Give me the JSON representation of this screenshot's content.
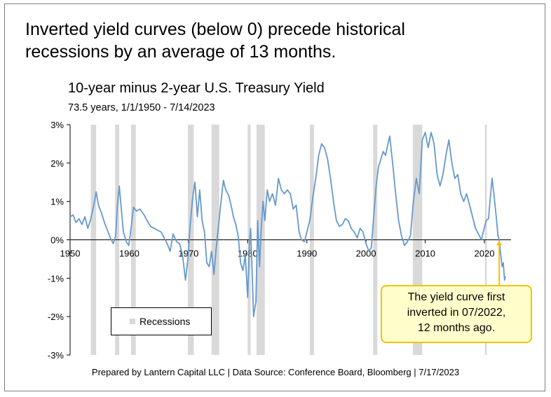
{
  "headline": {
    "line1": "Inverted yield curves (below 0) precede historical",
    "line2": "recessions by an average of 13 months."
  },
  "annotation": {
    "line1": "The yield curve first",
    "line2": "inverted in 07/2022,",
    "line3": "12 months ago."
  },
  "footer": "Prepared by Lantern Capital LLC | Data Source: Conference Board, Bloomberg | 7/17/2023",
  "colors": {
    "series": "#6699cc",
    "recession": "#d9d9d9",
    "callout_fill": "#ffffcc",
    "callout_border": "#f2c200",
    "marker": "#ffc000"
  },
  "chart_data": {
    "type": "line",
    "title": "10-year minus 2-year U.S. Treasury Yield",
    "subtitle": "73.5 years, 1/1/1950 - 7/14/2023",
    "xlabel": "",
    "ylabel": "",
    "xlim": [
      1950,
      2024.5
    ],
    "ylim": [
      -3,
      3
    ],
    "x_ticks": [
      1950,
      1960,
      1970,
      1980,
      1990,
      2000,
      2010,
      2020
    ],
    "y_ticks": [
      {
        "value": 3,
        "label": "3%"
      },
      {
        "value": 2,
        "label": "2%"
      },
      {
        "value": 1,
        "label": "1%"
      },
      {
        "value": 0,
        "label": "0%"
      },
      {
        "value": -1,
        "label": "-1%"
      },
      {
        "value": -2,
        "label": "-2%"
      },
      {
        "value": -3,
        "label": "-3%"
      }
    ],
    "grid": false,
    "legend": {
      "position": "bottom-left",
      "entries": [
        "Recessions"
      ]
    },
    "recessions": [
      [
        1953.5,
        1954.4
      ],
      [
        1957.6,
        1958.3
      ],
      [
        1960.3,
        1961.1
      ],
      [
        1969.9,
        1970.9
      ],
      [
        1973.9,
        1975.2
      ],
      [
        1980.0,
        1980.5
      ],
      [
        1981.5,
        1982.9
      ],
      [
        1990.5,
        1991.2
      ],
      [
        2001.2,
        2001.9
      ],
      [
        2007.9,
        2009.5
      ],
      [
        2020.1,
        2020.4
      ]
    ],
    "inversion_marker": {
      "x": 2022.5,
      "y": 0,
      "label": "07/2022"
    },
    "series": [
      {
        "values": [
          [
            1950.0,
            0.6
          ],
          [
            1950.5,
            0.65
          ],
          [
            1951.0,
            0.45
          ],
          [
            1951.5,
            0.55
          ],
          [
            1952.0,
            0.4
          ],
          [
            1952.5,
            0.6
          ],
          [
            1953.0,
            0.3
          ],
          [
            1953.5,
            0.55
          ],
          [
            1954.0,
            0.9
          ],
          [
            1954.4,
            1.25
          ],
          [
            1954.8,
            0.9
          ],
          [
            1955.3,
            0.7
          ],
          [
            1955.8,
            0.45
          ],
          [
            1956.3,
            0.25
          ],
          [
            1956.8,
            0.05
          ],
          [
            1957.3,
            -0.1
          ],
          [
            1957.7,
            0.1
          ],
          [
            1958.0,
            0.9
          ],
          [
            1958.3,
            1.4
          ],
          [
            1958.6,
            0.9
          ],
          [
            1959.0,
            0.2
          ],
          [
            1959.5,
            -0.05
          ],
          [
            1959.9,
            -0.15
          ],
          [
            1960.3,
            0.3
          ],
          [
            1960.7,
            0.85
          ],
          [
            1961.2,
            0.75
          ],
          [
            1961.8,
            0.8
          ],
          [
            1962.5,
            0.65
          ],
          [
            1963.0,
            0.5
          ],
          [
            1963.6,
            0.35
          ],
          [
            1964.2,
            0.3
          ],
          [
            1964.8,
            0.25
          ],
          [
            1965.4,
            0.2
          ],
          [
            1965.9,
            0.05
          ],
          [
            1966.4,
            -0.1
          ],
          [
            1966.9,
            -0.3
          ],
          [
            1967.4,
            0.15
          ],
          [
            1968.0,
            -0.05
          ],
          [
            1968.5,
            -0.1
          ],
          [
            1969.0,
            -0.4
          ],
          [
            1969.5,
            -1.05
          ],
          [
            1969.9,
            -0.5
          ],
          [
            1970.3,
            0.4
          ],
          [
            1970.7,
            1.1
          ],
          [
            1971.1,
            1.5
          ],
          [
            1971.5,
            0.6
          ],
          [
            1971.9,
            1.3
          ],
          [
            1972.3,
            0.5
          ],
          [
            1972.7,
            0.2
          ],
          [
            1973.1,
            -0.6
          ],
          [
            1973.5,
            -0.7
          ],
          [
            1973.9,
            -0.3
          ],
          [
            1974.3,
            -0.9
          ],
          [
            1974.7,
            -0.2
          ],
          [
            1975.1,
            0.4
          ],
          [
            1975.5,
            1.0
          ],
          [
            1975.9,
            1.55
          ],
          [
            1976.3,
            1.3
          ],
          [
            1976.8,
            1.15
          ],
          [
            1977.2,
            0.9
          ],
          [
            1977.6,
            0.6
          ],
          [
            1978.0,
            0.4
          ],
          [
            1978.4,
            0.1
          ],
          [
            1978.8,
            -0.6
          ],
          [
            1979.2,
            -0.8
          ],
          [
            1979.6,
            -0.4
          ],
          [
            1980.0,
            -1.5
          ],
          [
            1980.3,
            -0.1
          ],
          [
            1980.5,
            0.3
          ],
          [
            1980.8,
            -1.0
          ],
          [
            1981.0,
            -2.0
          ],
          [
            1981.4,
            -1.6
          ],
          [
            1981.7,
            0.5
          ],
          [
            1982.0,
            -0.7
          ],
          [
            1982.3,
            0.3
          ],
          [
            1982.6,
            1.0
          ],
          [
            1982.9,
            0.5
          ],
          [
            1983.3,
            1.3
          ],
          [
            1983.7,
            1.0
          ],
          [
            1984.2,
            1.2
          ],
          [
            1984.7,
            0.9
          ],
          [
            1985.2,
            1.6
          ],
          [
            1985.7,
            1.3
          ],
          [
            1986.2,
            1.2
          ],
          [
            1986.7,
            1.3
          ],
          [
            1987.2,
            1.2
          ],
          [
            1987.7,
            0.8
          ],
          [
            1988.2,
            0.9
          ],
          [
            1988.7,
            0.2
          ],
          [
            1989.1,
            0.0
          ],
          [
            1989.6,
            -0.05
          ],
          [
            1990.0,
            0.2
          ],
          [
            1990.5,
            0.5
          ],
          [
            1991.0,
            1.1
          ],
          [
            1991.5,
            1.6
          ],
          [
            1992.0,
            2.2
          ],
          [
            1992.5,
            2.5
          ],
          [
            1993.0,
            2.4
          ],
          [
            1993.5,
            2.1
          ],
          [
            1994.0,
            1.6
          ],
          [
            1994.5,
            1.0
          ],
          [
            1995.0,
            0.5
          ],
          [
            1995.5,
            0.35
          ],
          [
            1996.0,
            0.4
          ],
          [
            1996.5,
            0.55
          ],
          [
            1997.0,
            0.5
          ],
          [
            1997.5,
            0.3
          ],
          [
            1998.0,
            0.2
          ],
          [
            1998.5,
            0.05
          ],
          [
            1999.0,
            0.3
          ],
          [
            1999.5,
            0.2
          ],
          [
            2000.0,
            -0.1
          ],
          [
            2000.5,
            -0.3
          ],
          [
            2000.9,
            -0.2
          ],
          [
            2001.3,
            0.6
          ],
          [
            2001.7,
            1.4
          ],
          [
            2002.1,
            1.9
          ],
          [
            2002.5,
            2.1
          ],
          [
            2002.9,
            2.3
          ],
          [
            2003.3,
            2.2
          ],
          [
            2003.7,
            2.5
          ],
          [
            2004.0,
            2.7
          ],
          [
            2004.5,
            2.0
          ],
          [
            2005.0,
            1.2
          ],
          [
            2005.5,
            0.5
          ],
          [
            2006.0,
            0.1
          ],
          [
            2006.5,
            -0.15
          ],
          [
            2007.0,
            -0.05
          ],
          [
            2007.5,
            0.1
          ],
          [
            2008.0,
            1.0
          ],
          [
            2008.5,
            1.6
          ],
          [
            2009.0,
            1.2
          ],
          [
            2009.5,
            2.6
          ],
          [
            2010.0,
            2.8
          ],
          [
            2010.5,
            2.4
          ],
          [
            2011.0,
            2.8
          ],
          [
            2011.5,
            2.5
          ],
          [
            2012.0,
            1.7
          ],
          [
            2012.5,
            1.4
          ],
          [
            2013.0,
            1.7
          ],
          [
            2013.5,
            2.2
          ],
          [
            2014.0,
            2.6
          ],
          [
            2014.5,
            2.0
          ],
          [
            2015.0,
            1.6
          ],
          [
            2015.5,
            1.7
          ],
          [
            2016.0,
            1.2
          ],
          [
            2016.5,
            1.0
          ],
          [
            2017.0,
            1.2
          ],
          [
            2017.5,
            0.9
          ],
          [
            2018.0,
            0.6
          ],
          [
            2018.5,
            0.3
          ],
          [
            2019.0,
            0.15
          ],
          [
            2019.5,
            0.0
          ],
          [
            2019.8,
            0.2
          ],
          [
            2020.3,
            0.5
          ],
          [
            2020.7,
            0.55
          ],
          [
            2021.0,
            1.1
          ],
          [
            2021.3,
            1.6
          ],
          [
            2021.6,
            1.2
          ],
          [
            2022.0,
            0.6
          ],
          [
            2022.3,
            0.1
          ],
          [
            2022.5,
            0.0
          ],
          [
            2022.7,
            -0.3
          ],
          [
            2023.0,
            -0.7
          ],
          [
            2023.2,
            -0.6
          ],
          [
            2023.4,
            -1.05
          ],
          [
            2023.53,
            -0.95
          ]
        ]
      }
    ]
  }
}
